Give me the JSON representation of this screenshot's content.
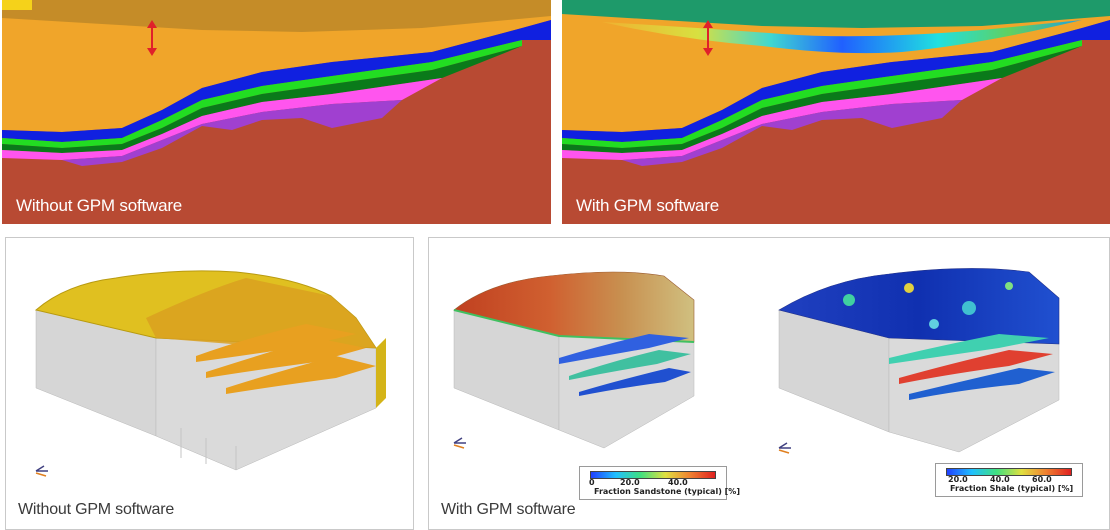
{
  "panels": {
    "top_left": {
      "caption": "Without GPM software"
    },
    "top_right": {
      "caption": "With GPM software"
    },
    "bottom_left": {
      "caption": "Without GPM software"
    },
    "bottom_right": {
      "caption": "With GPM software",
      "colorbar_sandstone": {
        "ticks": [
          "0",
          "20.0",
          "40.0"
        ],
        "title": "Fraction Sandstone (typical) [%]"
      },
      "colorbar_shale": {
        "ticks": [
          "20.0",
          "40.0",
          "60.0"
        ],
        "title": "Fraction Shale (typical) [%]"
      }
    }
  },
  "colors": {
    "basement": "#b84a33",
    "sediment_yellow": "#f0a52a",
    "layer_blue": "#1020e0",
    "layer_green": "#22dd22",
    "layer_darkgreen": "#0a7a1a",
    "layer_magenta": "#ff55ee",
    "layer_purple": "#a040d0",
    "arrow_red": "#e0202a"
  }
}
